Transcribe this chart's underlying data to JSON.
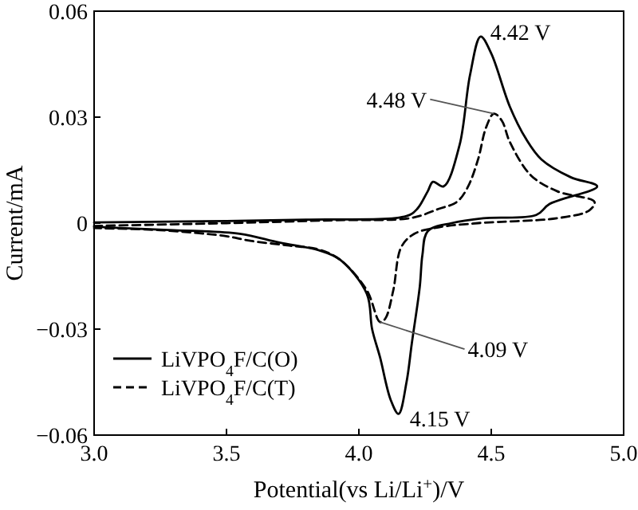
{
  "chart_data": {
    "type": "line",
    "xlabel": "Potential(vs Li/Li$^{+}$)/V",
    "ylabel": "Current/mA",
    "xlim": [
      3.0,
      5.0
    ],
    "xticks": [
      {
        "value": 3.0,
        "label": "3.0"
      },
      {
        "value": 3.5,
        "label": "3.5"
      },
      {
        "value": 4.0,
        "label": "4.0"
      },
      {
        "value": 4.5,
        "label": "4.5"
      },
      {
        "value": 5.0,
        "label": "5.0"
      }
    ],
    "ylim": [
      -0.06,
      0.06
    ],
    "yticks": [
      {
        "value": -0.06,
        "label": "−0.06"
      },
      {
        "value": -0.03,
        "label": "−0.03"
      },
      0,
      0.03,
      0.06
    ],
    "grid": false,
    "legend": "bottom left",
    "marker": "none",
    "series": [
      {
        "name": "LiVPO$_{4}$F/C(O)",
        "color": "#000000",
        "line_style": "solid",
        "x": [
          3.0,
          3.5,
          3.8,
          4.18,
          4.22,
          4.26,
          4.28,
          4.32,
          4.38,
          4.42,
          4.46,
          4.5,
          4.57,
          4.63,
          4.69,
          4.8,
          4.9,
          4.72,
          4.67,
          4.47,
          4.35,
          4.26,
          4.24,
          4.23,
          4.2,
          4.18,
          4.15,
          4.12,
          4.08,
          4.05,
          4.03,
          3.93,
          3.85,
          3.7,
          3.55,
          3.3,
          3.1,
          3.0
        ],
        "values": [
          0.0002,
          0.0006,
          0.001,
          0.002,
          0.004,
          0.009,
          0.0117,
          0.0104,
          0.022,
          0.042,
          0.0528,
          0.048,
          0.033,
          0.024,
          0.018,
          0.013,
          0.0104,
          0.0054,
          0.0023,
          0.0014,
          0.0,
          -0.0023,
          -0.009,
          -0.018,
          -0.034,
          -0.045,
          -0.054,
          -0.05,
          -0.038,
          -0.03,
          -0.02,
          -0.0104,
          -0.0077,
          -0.0055,
          -0.003,
          -0.002,
          -0.0014,
          -0.001
        ]
      },
      {
        "name": "LiVPO$_{4}$F/C(T)",
        "color": "#000000",
        "line_style": "dashed",
        "x": [
          3.0,
          3.5,
          3.9,
          4.2,
          4.3,
          4.37,
          4.41,
          4.45,
          4.48,
          4.51,
          4.54,
          4.57,
          4.65,
          4.75,
          4.89,
          4.87,
          4.75,
          4.45,
          4.3,
          4.21,
          4.16,
          4.13,
          4.1,
          4.08,
          4.03,
          3.93,
          3.85,
          3.73,
          3.59,
          3.49,
          3.25,
          3.0
        ],
        "values": [
          -0.0008,
          0.0,
          0.0008,
          0.0015,
          0.004,
          0.006,
          0.01,
          0.018,
          0.027,
          0.031,
          0.029,
          0.023,
          0.0135,
          0.009,
          0.006,
          0.0036,
          0.0014,
          0.0,
          -0.0012,
          -0.003,
          -0.0068,
          -0.019,
          -0.027,
          -0.028,
          -0.019,
          -0.0104,
          -0.0075,
          -0.0063,
          -0.005,
          -0.0036,
          -0.002,
          -0.0014
        ]
      }
    ],
    "annotations": [
      {
        "text": "4.42 V",
        "x": 4.46,
        "y": 0.0528
      },
      {
        "text": "4.48 V",
        "x": 4.51,
        "y": 0.031
      },
      {
        "text": "4.09 V",
        "x": 4.08,
        "y": -0.028
      },
      {
        "text": "4.15 V",
        "x": 4.15,
        "y": -0.054
      }
    ]
  }
}
